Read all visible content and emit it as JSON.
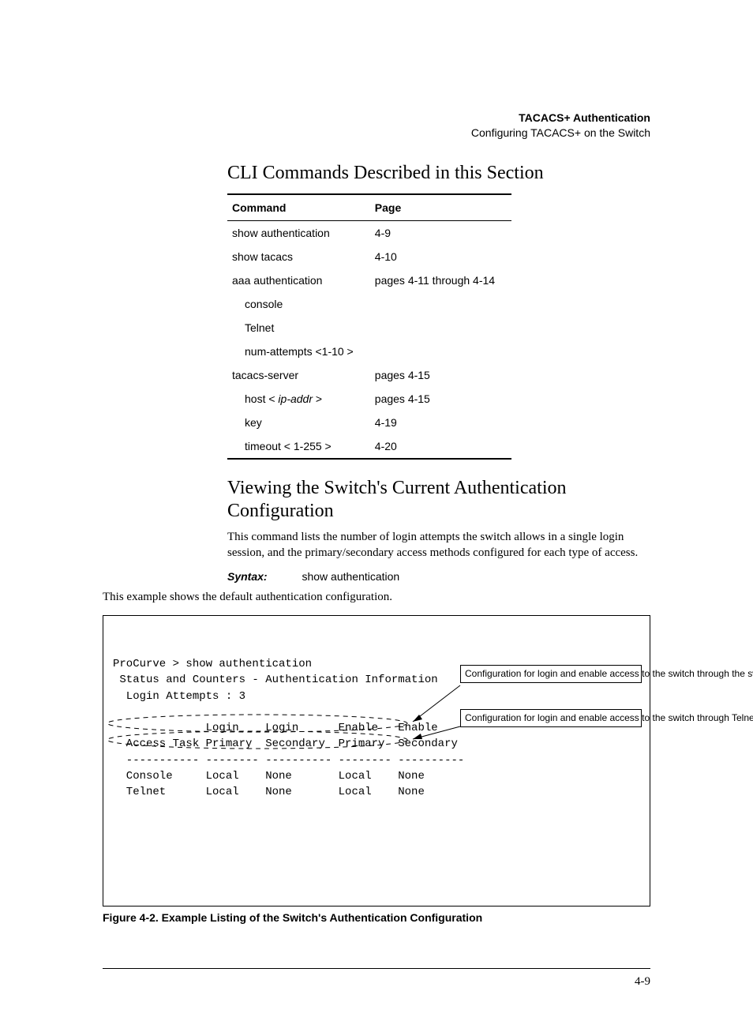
{
  "header": {
    "title_bold": "TACACS+ Authentication",
    "subtitle": "Configuring TACACS+ on the Switch"
  },
  "sections": {
    "cmds_heading": "CLI Commands Described in this Section",
    "view_heading": "Viewing the Switch's Current Authentication Configuration",
    "view_para": "This command lists the number of login attempts the switch allows in a single login session, and the primary/secondary access methods configured for each type of access.",
    "syntax_label": "Syntax:",
    "syntax_val": "show authentication",
    "example_intro": "This example shows the default authentication configuration."
  },
  "cmd_table": {
    "cols": [
      "Command",
      "Page"
    ],
    "rows": [
      {
        "cmd": "show authentication",
        "page": "4-9",
        "indent": 0
      },
      {
        "cmd": "show tacacs",
        "page": "4-10",
        "indent": 0
      },
      {
        "cmd": "aaa authentication",
        "page": "pages 4-11 through 4-14",
        "indent": 0
      },
      {
        "cmd": "console",
        "page": "",
        "indent": 1
      },
      {
        "cmd": "Telnet",
        "page": "",
        "indent": 1
      },
      {
        "cmd": "num-attempts <1-10 >",
        "page": "",
        "indent": 1
      },
      {
        "cmd": "tacacs-server",
        "page": "pages 4-15",
        "indent": 0
      },
      {
        "cmd_html": "host < <i>ip-addr</i> >",
        "page": "pages 4-15",
        "indent": 1
      },
      {
        "cmd": "key",
        "page": "4-19",
        "indent": 1
      },
      {
        "cmd": "timeout < 1-255 >",
        "page": "4-20",
        "indent": 1
      }
    ]
  },
  "terminal": {
    "lines": [
      "ProCurve > show authentication",
      " Status and Counters - Authentication Information",
      "  Login Attempts : 3",
      "",
      "              Login    Login      Enable   Enable",
      "  Access Task Primary  Secondary  Primary  Secondary",
      "  ----------- -------- ---------- -------- ----------",
      "  Console     Local    None       Local    None",
      "  Telnet      Local    None       Local    None"
    ],
    "annot1": "Configuration for login and enable access to the switch through the switch console port.",
    "annot2": "Configuration for login and enable access to the switch through Telnet.",
    "caption": "Figure 4-2. Example Listing of the Switch's Authentication Configuration"
  },
  "page_number": "4-9",
  "colors": {
    "text": "#000000",
    "bg": "#ffffff",
    "rule": "#000000"
  },
  "fonts": {
    "serif": "Century Schoolbook / Times",
    "sans": "Arial",
    "mono": "Courier New",
    "h2_size_pt": 18,
    "body_size_pt": 11,
    "sans_size_pt": 10.5,
    "mono_size_pt": 10.5
  }
}
